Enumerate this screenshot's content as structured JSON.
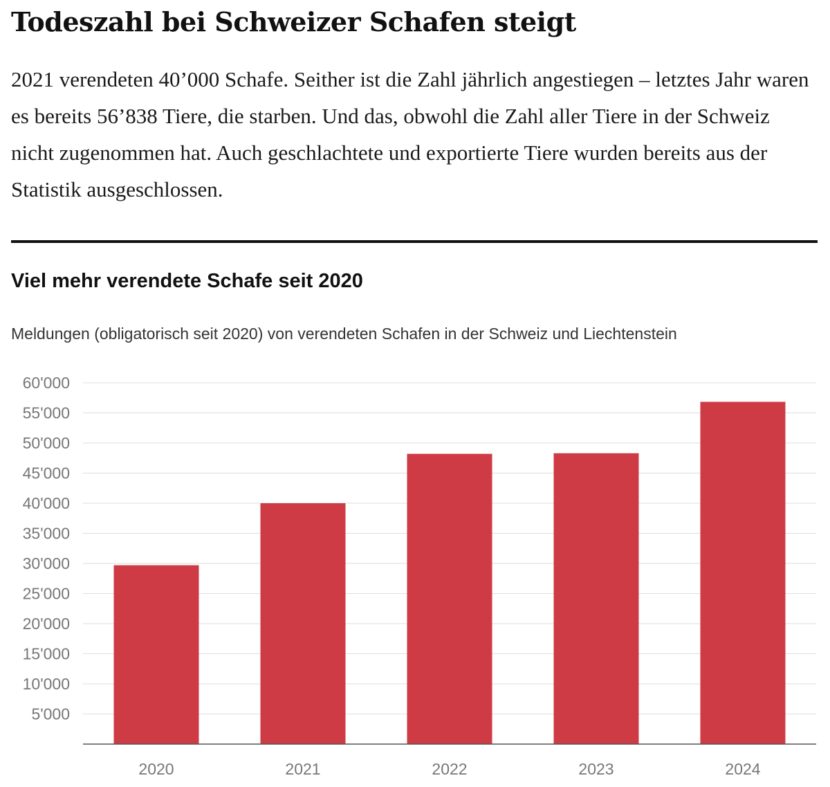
{
  "article": {
    "headline": "Todeszahl bei Schweizer Schafen steigt",
    "lead": "2021 verendeten 40’000 Schafe. Seither ist die Zahl jährlich angestiegen – letztes Jahr waren es bereits 56’838 Tiere, die starben. Und das, obwohl die Zahl aller Tiere in der Schweiz nicht zugenommen hat. Auch geschlachtete und exportierte Tiere wurden bereits aus der Statistik ausgeschlossen."
  },
  "chart_data": {
    "type": "bar",
    "title": "Viel mehr verendete Schafe seit 2020",
    "subtitle": "Meldungen (obligatorisch seit 2020) von verendeten Schafen in der Schweiz und Liechtenstein",
    "xlabel": "",
    "ylabel": "",
    "categories": [
      "2020",
      "2021",
      "2022",
      "2023",
      "2024"
    ],
    "values": [
      29700,
      40000,
      48200,
      48300,
      56838
    ],
    "ylim": [
      0,
      60000
    ],
    "yticks": [
      5000,
      10000,
      15000,
      20000,
      25000,
      30000,
      35000,
      40000,
      45000,
      50000,
      55000,
      60000
    ],
    "ytick_labels": [
      "5'000",
      "10'000",
      "15'000",
      "20'000",
      "25'000",
      "30'000",
      "35'000",
      "40'000",
      "45'000",
      "50'000",
      "55'000",
      "60'000"
    ],
    "grid": true,
    "legend": "none",
    "colors": {
      "bar": "#ce3b45",
      "grid": "#dedede",
      "axis": "#555555",
      "tick_label": "#777777"
    }
  }
}
